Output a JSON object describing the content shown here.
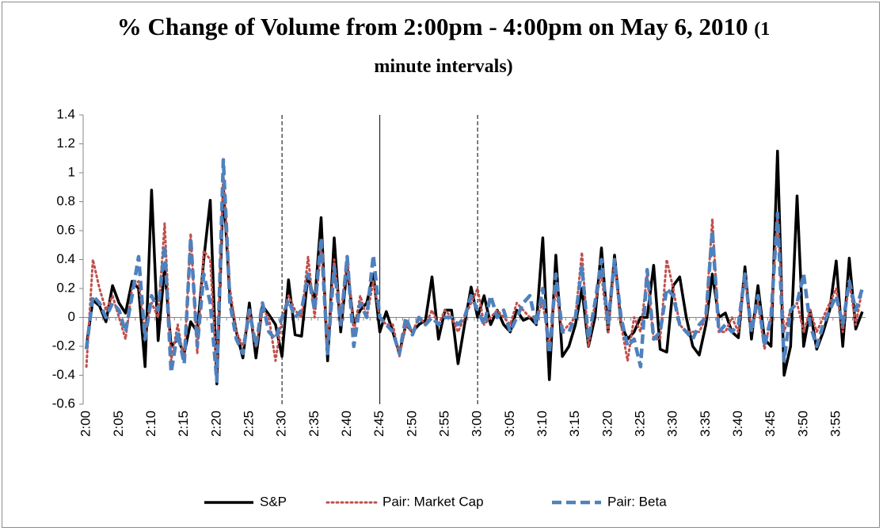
{
  "chart_data": {
    "type": "line",
    "title": "% Change of Volume from 2:00pm - 4:00pm on May 6, 2010",
    "title_note": "(1 minute intervals)",
    "categories": [
      "2:00",
      null,
      null,
      null,
      null,
      "2:05",
      null,
      null,
      null,
      null,
      "2:10",
      null,
      null,
      null,
      null,
      "2:15",
      null,
      null,
      null,
      null,
      "2:20",
      null,
      null,
      null,
      null,
      "2:25",
      null,
      null,
      null,
      null,
      "2:30",
      null,
      null,
      null,
      null,
      "2:35",
      null,
      null,
      null,
      null,
      "2:40",
      null,
      null,
      null,
      null,
      "2:45",
      null,
      null,
      null,
      null,
      "2:50",
      null,
      null,
      null,
      null,
      "2:55",
      null,
      null,
      null,
      null,
      "3:00",
      null,
      null,
      null,
      null,
      "3:05",
      null,
      null,
      null,
      null,
      "3:10",
      null,
      null,
      null,
      null,
      "3:15",
      null,
      null,
      null,
      null,
      "3:20",
      null,
      null,
      null,
      null,
      "3:25",
      null,
      null,
      null,
      null,
      "3:30",
      null,
      null,
      null,
      null,
      "3:35",
      null,
      null,
      null,
      null,
      "3:40",
      null,
      null,
      null,
      null,
      "3:45",
      null,
      null,
      null,
      null,
      "3:50",
      null,
      null,
      null,
      null,
      "3:55",
      null,
      null,
      null,
      null
    ],
    "series": [
      {
        "name": "S&P",
        "color": "#000000",
        "style": "solid",
        "values": [
          -0.2,
          0.12,
          0.08,
          -0.03,
          0.22,
          0.1,
          0.03,
          0.25,
          0.2,
          -0.34,
          0.88,
          -0.16,
          0.35,
          -0.2,
          -0.15,
          -0.25,
          -0.03,
          -0.1,
          0.4,
          0.81,
          -0.46,
          0.9,
          0.15,
          -0.1,
          -0.28,
          0.1,
          -0.28,
          0.08,
          0.02,
          -0.05,
          -0.27,
          0.26,
          -0.12,
          -0.13,
          0.3,
          0.1,
          0.69,
          -0.3,
          0.55,
          -0.1,
          0.35,
          -0.05,
          0.05,
          0.1,
          0.3,
          -0.1,
          0.04,
          -0.1,
          -0.25,
          -0.05,
          -0.1,
          -0.05,
          -0.02,
          0.28,
          -0.15,
          0.05,
          0.05,
          -0.32,
          -0.05,
          0.21,
          0.0,
          0.15,
          -0.05,
          0.05,
          -0.05,
          -0.1,
          0.05,
          -0.02,
          0.0,
          -0.05,
          0.55,
          -0.43,
          0.43,
          -0.27,
          -0.2,
          -0.05,
          0.2,
          -0.2,
          0.0,
          0.48,
          -0.1,
          0.43,
          -0.05,
          -0.15,
          -0.1,
          0.0,
          0.0,
          0.36,
          -0.22,
          -0.24,
          0.22,
          0.28,
          0.0,
          -0.2,
          -0.26,
          -0.05,
          0.3,
          0.0,
          0.03,
          -0.1,
          -0.14,
          0.35,
          -0.15,
          0.22,
          -0.15,
          -0.2,
          1.15,
          -0.4,
          -0.2,
          0.84,
          -0.2,
          0.05,
          -0.22,
          -0.1,
          0.05,
          0.39,
          -0.2,
          0.41,
          -0.08,
          0.04
        ]
      },
      {
        "name": "Pair: Market Cap",
        "color": "#c0504d",
        "style": "dotted",
        "values": [
          -0.34,
          0.4,
          0.2,
          0.05,
          0.15,
          0.0,
          -0.15,
          0.2,
          0.25,
          -0.1,
          0.1,
          0.0,
          0.65,
          -0.3,
          -0.05,
          -0.3,
          0.58,
          -0.25,
          0.46,
          0.4,
          -0.4,
          1.0,
          0.2,
          -0.1,
          -0.2,
          0.05,
          -0.2,
          0.05,
          0.0,
          -0.3,
          0.0,
          0.15,
          0.05,
          0.0,
          0.42,
          0.0,
          0.5,
          -0.2,
          0.4,
          0.0,
          0.43,
          -0.1,
          0.15,
          0.0,
          0.25,
          0.0,
          -0.05,
          -0.05,
          -0.27,
          -0.05,
          -0.1,
          0.0,
          -0.05,
          0.05,
          -0.05,
          0.05,
          0.0,
          -0.1,
          0.0,
          0.1,
          0.2,
          -0.05,
          0.0,
          0.05,
          0.0,
          -0.05,
          0.1,
          0.05,
          0.0,
          0.0,
          0.1,
          -0.2,
          0.2,
          -0.1,
          -0.05,
          0.0,
          0.45,
          -0.2,
          0.1,
          0.3,
          -0.1,
          0.4,
          -0.05,
          -0.3,
          0.0,
          -0.1,
          0.3,
          -0.15,
          -0.15,
          0.4,
          0.2,
          -0.05,
          -0.1,
          -0.1,
          -0.1,
          0.0,
          0.68,
          -0.1,
          -0.1,
          0.0,
          -0.1,
          0.3,
          -0.1,
          0.1,
          -0.22,
          0.0,
          0.7,
          -0.1,
          0.05,
          0.1,
          -0.1,
          0.05,
          -0.1,
          0.0,
          0.1,
          0.2,
          -0.1,
          0.25,
          -0.05,
          0.2
        ]
      },
      {
        "name": "Pair: Beta",
        "color": "#4f81bd",
        "style": "dashed",
        "values": [
          -0.22,
          0.15,
          0.1,
          0.0,
          0.1,
          0.05,
          -0.1,
          0.15,
          0.42,
          -0.15,
          0.15,
          0.05,
          0.5,
          -0.38,
          -0.1,
          -0.32,
          0.55,
          -0.2,
          0.3,
          0.1,
          -0.44,
          1.09,
          0.1,
          -0.15,
          -0.25,
          0.05,
          -0.2,
          0.1,
          -0.1,
          -0.15,
          0.0,
          0.12,
          0.0,
          0.05,
          0.3,
          0.05,
          0.55,
          -0.25,
          0.35,
          -0.05,
          0.42,
          -0.2,
          0.1,
          0.0,
          0.43,
          0.0,
          -0.05,
          -0.1,
          -0.25,
          0.0,
          -0.12,
          0.0,
          -0.05,
          0.0,
          -0.05,
          0.0,
          0.0,
          -0.05,
          0.0,
          0.15,
          0.05,
          -0.05,
          0.15,
          0.0,
          0.05,
          -0.1,
          0.0,
          0.1,
          0.15,
          -0.05,
          0.2,
          -0.25,
          0.3,
          -0.1,
          -0.1,
          0.0,
          0.35,
          -0.15,
          0.1,
          0.4,
          -0.05,
          0.4,
          0.0,
          -0.2,
          -0.15,
          -0.34,
          0.33,
          -0.15,
          -0.1,
          0.2,
          0.15,
          -0.05,
          -0.1,
          -0.15,
          -0.05,
          0.0,
          0.6,
          -0.1,
          -0.05,
          -0.1,
          -0.05,
          0.3,
          -0.1,
          0.15,
          -0.2,
          0.0,
          0.72,
          -0.3,
          0.05,
          0.1,
          0.3,
          -0.05,
          -0.2,
          -0.05,
          0.05,
          0.15,
          -0.05,
          0.25,
          0.05,
          0.2
        ]
      }
    ],
    "ylim": [
      -0.6,
      1.4
    ],
    "yticks": [
      -0.6,
      -0.4,
      -0.2,
      0,
      0.2,
      0.4,
      0.6,
      0.8,
      1,
      1.2,
      1.4
    ],
    "reference_lines": [
      {
        "at": "2:30",
        "style": "dashed"
      },
      {
        "at": "2:45",
        "style": "solid"
      },
      {
        "at": "3:00",
        "style": "dashed"
      }
    ],
    "legend": "bottom",
    "grid": false
  }
}
